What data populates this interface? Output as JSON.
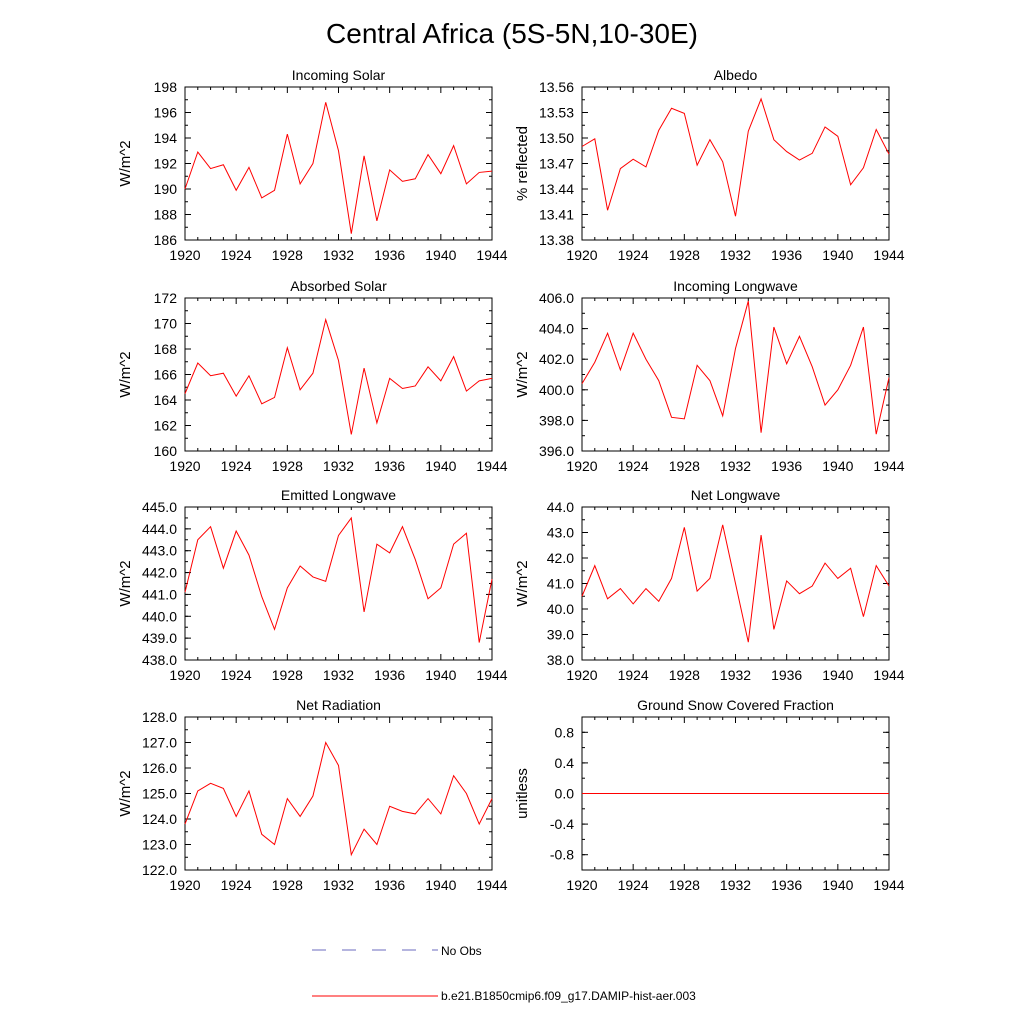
{
  "figure": {
    "title": "Central Africa (5S-5N,10-30E)",
    "legend": [
      {
        "label": "No Obs",
        "color": "#6b6bbf",
        "style": "dashed"
      },
      {
        "label": "b.e21.B1850cmip6.f09_g17.DAMIP-hist-aer.003",
        "color": "#ff0000",
        "style": "solid"
      }
    ],
    "line_color": "#ff0000"
  },
  "chart_data": [
    {
      "type": "line",
      "title": "Incoming Solar",
      "ylabel": "W/m^2",
      "xlabel": "",
      "xlim": [
        1920,
        1944
      ],
      "ylim": [
        186,
        198
      ],
      "xticks": [
        "1920",
        "1924",
        "1928",
        "1932",
        "1936",
        "1940",
        "1944"
      ],
      "yticks": [
        "186",
        "188",
        "190",
        "192",
        "194",
        "196",
        "198"
      ],
      "x": [
        1920,
        1921,
        1922,
        1923,
        1924,
        1925,
        1926,
        1927,
        1928,
        1929,
        1930,
        1931,
        1932,
        1933,
        1934,
        1935,
        1936,
        1937,
        1938,
        1939,
        1940,
        1941,
        1942,
        1943,
        1944
      ],
      "values": [
        190.0,
        192.9,
        191.6,
        191.9,
        189.9,
        191.7,
        189.3,
        189.9,
        194.3,
        190.4,
        192.0,
        196.8,
        193.0,
        186.5,
        192.6,
        187.5,
        191.5,
        190.6,
        190.8,
        192.7,
        191.2,
        193.4,
        190.4,
        191.3,
        191.4
      ]
    },
    {
      "type": "line",
      "title": "Albedo",
      "ylabel": "% reflected",
      "xlabel": "",
      "xlim": [
        1920,
        1944
      ],
      "ylim": [
        13.38,
        13.56
      ],
      "xticks": [
        "1920",
        "1924",
        "1928",
        "1932",
        "1936",
        "1940",
        "1944"
      ],
      "yticks": [
        "13.38",
        "13.41",
        "13.44",
        "13.47",
        "13.50",
        "13.53",
        "13.56"
      ],
      "x": [
        1920,
        1921,
        1922,
        1923,
        1924,
        1925,
        1926,
        1927,
        1928,
        1929,
        1930,
        1931,
        1932,
        1933,
        1934,
        1935,
        1936,
        1937,
        1938,
        1939,
        1940,
        1941,
        1942,
        1943,
        1944
      ],
      "values": [
        13.49,
        13.499,
        13.415,
        13.464,
        13.475,
        13.466,
        13.509,
        13.535,
        13.529,
        13.468,
        13.498,
        13.472,
        13.408,
        13.508,
        13.546,
        13.498,
        13.484,
        13.474,
        13.482,
        13.513,
        13.502,
        13.445,
        13.465,
        13.51,
        13.481
      ]
    },
    {
      "type": "line",
      "title": "Absorbed Solar",
      "ylabel": "W/m^2",
      "xlabel": "",
      "xlim": [
        1920,
        1944
      ],
      "ylim": [
        160,
        172
      ],
      "xticks": [
        "1920",
        "1924",
        "1928",
        "1932",
        "1936",
        "1940",
        "1944"
      ],
      "yticks": [
        "160",
        "162",
        "164",
        "166",
        "168",
        "170",
        "172"
      ],
      "x": [
        1920,
        1921,
        1922,
        1923,
        1924,
        1925,
        1926,
        1927,
        1928,
        1929,
        1930,
        1931,
        1932,
        1933,
        1934,
        1935,
        1936,
        1937,
        1938,
        1939,
        1940,
        1941,
        1942,
        1943,
        1944
      ],
      "values": [
        164.5,
        166.9,
        165.9,
        166.1,
        164.3,
        165.9,
        163.7,
        164.2,
        168.1,
        164.8,
        166.1,
        170.3,
        167.1,
        161.3,
        166.5,
        162.2,
        165.7,
        164.9,
        165.1,
        166.6,
        165.5,
        167.4,
        164.7,
        165.5,
        165.7
      ]
    },
    {
      "type": "line",
      "title": "Incoming Longwave",
      "ylabel": "W/m^2",
      "xlabel": "",
      "xlim": [
        1920,
        1944
      ],
      "ylim": [
        396.0,
        406.0
      ],
      "xticks": [
        "1920",
        "1924",
        "1928",
        "1932",
        "1936",
        "1940",
        "1944"
      ],
      "yticks": [
        "396.0",
        "398.0",
        "400.0",
        "402.0",
        "404.0",
        "406.0"
      ],
      "x": [
        1920,
        1921,
        1922,
        1923,
        1924,
        1925,
        1926,
        1927,
        1928,
        1929,
        1930,
        1931,
        1932,
        1933,
        1934,
        1935,
        1936,
        1937,
        1938,
        1939,
        1940,
        1941,
        1942,
        1943,
        1944
      ],
      "values": [
        400.4,
        401.8,
        403.7,
        401.3,
        403.7,
        402.0,
        400.6,
        398.2,
        398.1,
        401.6,
        400.6,
        398.3,
        402.7,
        405.8,
        397.2,
        404.1,
        401.7,
        403.5,
        401.5,
        399.0,
        400.0,
        401.6,
        404.1,
        397.1,
        400.8
      ]
    },
    {
      "type": "line",
      "title": "Emitted Longwave",
      "ylabel": "W/m^2",
      "xlabel": "",
      "xlim": [
        1920,
        1944
      ],
      "ylim": [
        438.0,
        445.0
      ],
      "xticks": [
        "1920",
        "1924",
        "1928",
        "1932",
        "1936",
        "1940",
        "1944"
      ],
      "yticks": [
        "438.0",
        "439.0",
        "440.0",
        "441.0",
        "442.0",
        "443.0",
        "444.0",
        "445.0"
      ],
      "x": [
        1920,
        1921,
        1922,
        1923,
        1924,
        1925,
        1926,
        1927,
        1928,
        1929,
        1930,
        1931,
        1932,
        1933,
        1934,
        1935,
        1936,
        1937,
        1938,
        1939,
        1940,
        1941,
        1942,
        1943,
        1944
      ],
      "values": [
        441.1,
        443.5,
        444.1,
        442.2,
        443.9,
        442.8,
        440.9,
        439.4,
        441.3,
        442.3,
        441.8,
        441.6,
        443.7,
        444.5,
        440.2,
        443.3,
        442.9,
        444.1,
        442.6,
        440.8,
        441.3,
        443.3,
        443.8,
        438.8,
        441.7
      ]
    },
    {
      "type": "line",
      "title": "Net Longwave",
      "ylabel": "W/m^2",
      "xlabel": "",
      "xlim": [
        1920,
        1944
      ],
      "ylim": [
        38.0,
        44.0
      ],
      "xticks": [
        "1920",
        "1924",
        "1928",
        "1932",
        "1936",
        "1940",
        "1944"
      ],
      "yticks": [
        "38.0",
        "39.0",
        "40.0",
        "41.0",
        "42.0",
        "43.0",
        "44.0"
      ],
      "x": [
        1920,
        1921,
        1922,
        1923,
        1924,
        1925,
        1926,
        1927,
        1928,
        1929,
        1930,
        1931,
        1932,
        1933,
        1934,
        1935,
        1936,
        1937,
        1938,
        1939,
        1940,
        1941,
        1942,
        1943,
        1944
      ],
      "values": [
        40.5,
        41.7,
        40.4,
        40.8,
        40.2,
        40.8,
        40.3,
        41.2,
        43.2,
        40.7,
        41.2,
        43.3,
        41.0,
        38.7,
        42.9,
        39.2,
        41.1,
        40.6,
        40.9,
        41.8,
        41.2,
        41.6,
        39.7,
        41.7,
        40.9
      ]
    },
    {
      "type": "line",
      "title": "Net Radiation",
      "ylabel": "W/m^2",
      "xlabel": "",
      "xlim": [
        1920,
        1944
      ],
      "ylim": [
        122.0,
        128.0
      ],
      "xticks": [
        "1920",
        "1924",
        "1928",
        "1932",
        "1936",
        "1940",
        "1944"
      ],
      "yticks": [
        "122.0",
        "123.0",
        "124.0",
        "125.0",
        "126.0",
        "127.0",
        "128.0"
      ],
      "x": [
        1920,
        1921,
        1922,
        1923,
        1924,
        1925,
        1926,
        1927,
        1928,
        1929,
        1930,
        1931,
        1932,
        1933,
        1934,
        1935,
        1936,
        1937,
        1938,
        1939,
        1940,
        1941,
        1942,
        1943,
        1944
      ],
      "values": [
        123.8,
        125.1,
        125.4,
        125.2,
        124.1,
        125.1,
        123.4,
        123.0,
        124.8,
        124.1,
        124.9,
        127.0,
        126.1,
        122.6,
        123.6,
        123.0,
        124.5,
        124.3,
        124.2,
        124.8,
        124.2,
        125.7,
        125.0,
        123.8,
        124.8
      ]
    },
    {
      "type": "line",
      "title": "Ground Snow Covered Fraction",
      "ylabel": "unitless",
      "xlabel": "",
      "xlim": [
        1920,
        1944
      ],
      "ylim": [
        -1.0,
        1.0
      ],
      "xticks": [
        "1920",
        "1924",
        "1928",
        "1932",
        "1936",
        "1940",
        "1944"
      ],
      "yticks": [
        "-0.8",
        "-0.4",
        "0.0",
        "0.4",
        "0.8"
      ],
      "x": [
        1920,
        1921,
        1922,
        1923,
        1924,
        1925,
        1926,
        1927,
        1928,
        1929,
        1930,
        1931,
        1932,
        1933,
        1934,
        1935,
        1936,
        1937,
        1938,
        1939,
        1940,
        1941,
        1942,
        1943,
        1944
      ],
      "values": [
        0,
        0,
        0,
        0,
        0,
        0,
        0,
        0,
        0,
        0,
        0,
        0,
        0,
        0,
        0,
        0,
        0,
        0,
        0,
        0,
        0,
        0,
        0,
        0,
        0
      ]
    }
  ]
}
